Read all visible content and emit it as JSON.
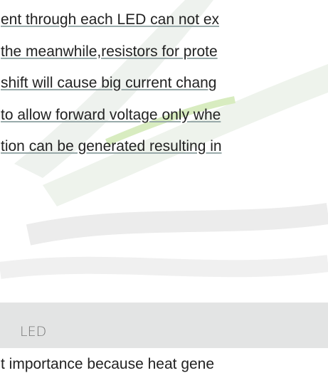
{
  "paragraph": {
    "lines": [
      "ent through each LED can not ex",
      "the meanwhile,resistors for prote",
      "shift will cause big current chang",
      "to allow forward voltage only whe",
      "tion can be generated resulting in"
    ]
  },
  "section": {
    "heading": "LED"
  },
  "tail": {
    "line": "t importance because heat gene"
  }
}
